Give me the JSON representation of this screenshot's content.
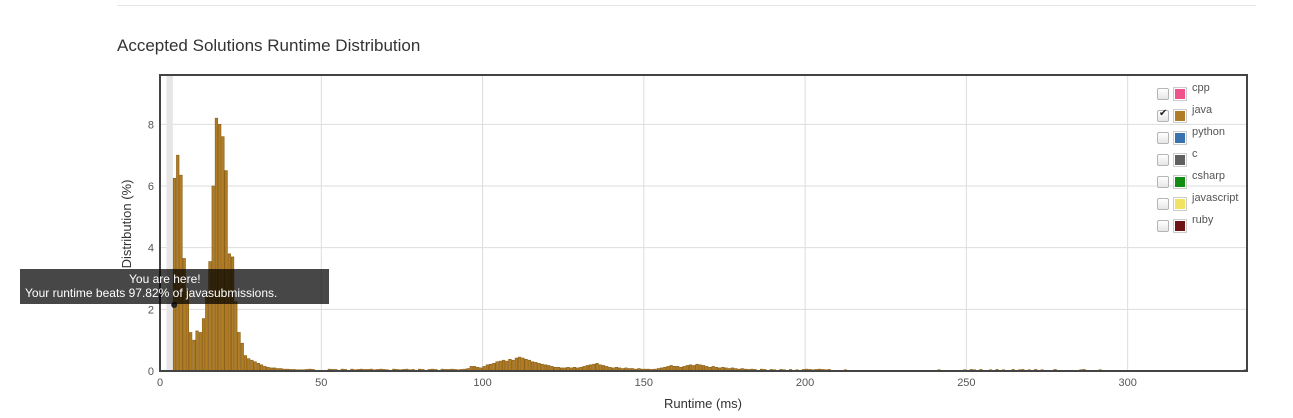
{
  "chart_title": "Accepted Solutions Runtime Distribution",
  "legend": {
    "items": [
      {
        "name": "cpp",
        "color": "#f0528b",
        "checked": false
      },
      {
        "name": "java",
        "color": "#b07d26",
        "checked": true
      },
      {
        "name": "python",
        "color": "#3a72b0",
        "checked": false
      },
      {
        "name": "c",
        "color": "#5f5f5f",
        "checked": false
      },
      {
        "name": "csharp",
        "color": "#128c12",
        "checked": false
      },
      {
        "name": "javascript",
        "color": "#f2e261",
        "checked": false
      },
      {
        "name": "ruby",
        "color": "#6e1416",
        "checked": false
      }
    ]
  },
  "tooltip": {
    "line1": "You are here!",
    "line2": "Your runtime beats 97.82% of javasubmissions."
  },
  "chart_data": {
    "type": "bar",
    "title": "Accepted Solutions Runtime Distribution",
    "xlabel": "Runtime (ms)",
    "ylabel": "Distribution (%)",
    "xlim": [
      0,
      337
    ],
    "ylim": [
      0,
      9.6
    ],
    "xticks": [
      0,
      50,
      100,
      150,
      200,
      250,
      300
    ],
    "yticks": [
      0,
      2,
      4,
      6,
      8
    ],
    "grid": true,
    "legend_position": "top-right",
    "highlight_x": 4,
    "series": [
      {
        "name": "java",
        "color": "#b07d26",
        "points": [
          [
            4,
            6.25
          ],
          [
            5,
            7.0
          ],
          [
            6,
            6.35
          ],
          [
            7,
            3.65
          ],
          [
            8,
            2.6
          ],
          [
            9,
            1.25
          ],
          [
            10,
            1.0
          ],
          [
            11,
            1.3
          ],
          [
            12,
            1.25
          ],
          [
            13,
            1.7
          ],
          [
            14,
            2.5
          ],
          [
            15,
            3.55
          ],
          [
            16,
            6.0
          ],
          [
            17,
            8.2
          ],
          [
            18,
            8.0
          ],
          [
            19,
            7.6
          ],
          [
            20,
            6.5
          ],
          [
            21,
            3.8
          ],
          [
            22,
            3.7
          ],
          [
            23,
            2.25
          ],
          [
            24,
            1.25
          ],
          [
            25,
            0.9
          ],
          [
            26,
            0.5
          ],
          [
            27,
            0.4
          ],
          [
            28,
            0.35
          ],
          [
            29,
            0.3
          ],
          [
            30,
            0.25
          ],
          [
            31,
            0.2
          ],
          [
            32,
            0.15
          ],
          [
            33,
            0.12
          ],
          [
            34,
            0.1
          ],
          [
            35,
            0.1
          ],
          [
            36,
            0.08
          ],
          [
            37,
            0.08
          ],
          [
            38,
            0.06
          ],
          [
            39,
            0.06
          ],
          [
            40,
            0.05
          ],
          [
            41,
            0.05
          ],
          [
            42,
            0.04
          ],
          [
            43,
            0.04
          ],
          [
            44,
            0.04
          ],
          [
            45,
            0.05
          ],
          [
            46,
            0.06
          ],
          [
            47,
            0.05
          ],
          [
            52,
            0.06
          ],
          [
            53,
            0.05
          ],
          [
            54,
            0.05
          ],
          [
            56,
            0.06
          ],
          [
            57,
            0.05
          ],
          [
            59,
            0.06
          ],
          [
            60,
            0.04
          ],
          [
            61,
            0.05
          ],
          [
            62,
            0.06
          ],
          [
            63,
            0.05
          ],
          [
            64,
            0.05
          ],
          [
            65,
            0.06
          ],
          [
            66,
            0.04
          ],
          [
            67,
            0.05
          ],
          [
            68,
            0.06
          ],
          [
            69,
            0.05
          ],
          [
            70,
            0.04
          ],
          [
            72,
            0.06
          ],
          [
            73,
            0.05
          ],
          [
            74,
            0.04
          ],
          [
            75,
            0.05
          ],
          [
            76,
            0.06
          ],
          [
            77,
            0.04
          ],
          [
            78,
            0.05
          ],
          [
            80,
            0.06
          ],
          [
            81,
            0.05
          ],
          [
            83,
            0.05
          ],
          [
            84,
            0.06
          ],
          [
            85,
            0.05
          ],
          [
            87,
            0.06
          ],
          [
            88,
            0.05
          ],
          [
            89,
            0.05
          ],
          [
            90,
            0.06
          ],
          [
            91,
            0.05
          ],
          [
            92,
            0.04
          ],
          [
            93,
            0.05
          ],
          [
            94,
            0.06
          ],
          [
            95,
            0.08
          ],
          [
            96,
            0.15
          ],
          [
            97,
            0.15
          ],
          [
            98,
            0.12
          ],
          [
            99,
            0.1
          ],
          [
            100,
            0.15
          ],
          [
            101,
            0.2
          ],
          [
            102,
            0.22
          ],
          [
            103,
            0.25
          ],
          [
            104,
            0.3
          ],
          [
            105,
            0.32
          ],
          [
            106,
            0.35
          ],
          [
            107,
            0.32
          ],
          [
            108,
            0.38
          ],
          [
            109,
            0.35
          ],
          [
            110,
            0.42
          ],
          [
            111,
            0.45
          ],
          [
            112,
            0.42
          ],
          [
            113,
            0.38
          ],
          [
            114,
            0.35
          ],
          [
            115,
            0.3
          ],
          [
            116,
            0.28
          ],
          [
            117,
            0.25
          ],
          [
            118,
            0.22
          ],
          [
            119,
            0.2
          ],
          [
            120,
            0.18
          ],
          [
            121,
            0.15
          ],
          [
            122,
            0.12
          ],
          [
            123,
            0.12
          ],
          [
            124,
            0.1
          ],
          [
            125,
            0.1
          ],
          [
            126,
            0.12
          ],
          [
            127,
            0.1
          ],
          [
            128,
            0.12
          ],
          [
            129,
            0.1
          ],
          [
            130,
            0.12
          ],
          [
            131,
            0.15
          ],
          [
            132,
            0.18
          ],
          [
            133,
            0.2
          ],
          [
            134,
            0.22
          ],
          [
            135,
            0.25
          ],
          [
            136,
            0.2
          ],
          [
            137,
            0.18
          ],
          [
            138,
            0.15
          ],
          [
            139,
            0.12
          ],
          [
            140,
            0.1
          ],
          [
            141,
            0.12
          ],
          [
            142,
            0.1
          ],
          [
            143,
            0.08
          ],
          [
            144,
            0.1
          ],
          [
            145,
            0.08
          ],
          [
            146,
            0.08
          ],
          [
            147,
            0.06
          ],
          [
            148,
            0.08
          ],
          [
            149,
            0.06
          ],
          [
            150,
            0.06
          ],
          [
            151,
            0.06
          ],
          [
            152,
            0.05
          ],
          [
            153,
            0.06
          ],
          [
            154,
            0.08
          ],
          [
            155,
            0.1
          ],
          [
            156,
            0.12
          ],
          [
            157,
            0.15
          ],
          [
            158,
            0.18
          ],
          [
            159,
            0.15
          ],
          [
            160,
            0.15
          ],
          [
            161,
            0.12
          ],
          [
            162,
            0.15
          ],
          [
            163,
            0.18
          ],
          [
            164,
            0.2
          ],
          [
            165,
            0.18
          ],
          [
            166,
            0.22
          ],
          [
            167,
            0.2
          ],
          [
            168,
            0.18
          ],
          [
            169,
            0.15
          ],
          [
            170,
            0.12
          ],
          [
            171,
            0.15
          ],
          [
            172,
            0.12
          ],
          [
            173,
            0.1
          ],
          [
            174,
            0.12
          ],
          [
            175,
            0.1
          ],
          [
            176,
            0.08
          ],
          [
            177,
            0.1
          ],
          [
            178,
            0.08
          ],
          [
            179,
            0.06
          ],
          [
            180,
            0.08
          ],
          [
            181,
            0.06
          ],
          [
            182,
            0.05
          ],
          [
            183,
            0.06
          ],
          [
            184,
            0.05
          ],
          [
            186,
            0.06
          ],
          [
            187,
            0.05
          ],
          [
            189,
            0.05
          ],
          [
            190,
            0.04
          ],
          [
            192,
            0.05
          ],
          [
            193,
            0.04
          ],
          [
            195,
            0.05
          ],
          [
            197,
            0.04
          ],
          [
            199,
            0.05
          ],
          [
            200,
            0.06
          ],
          [
            201,
            0.05
          ],
          [
            202,
            0.04
          ],
          [
            203,
            0.05
          ],
          [
            204,
            0.06
          ],
          [
            205,
            0.05
          ],
          [
            206,
            0.04
          ],
          [
            207,
            0.05
          ],
          [
            212,
            0.04
          ],
          [
            241,
            0.04
          ],
          [
            249,
            0.04
          ],
          [
            251,
            0.05
          ],
          [
            252,
            0.04
          ],
          [
            254,
            0.05
          ],
          [
            257,
            0.04
          ],
          [
            259,
            0.05
          ],
          [
            261,
            0.04
          ],
          [
            264,
            0.05
          ],
          [
            266,
            0.04
          ],
          [
            267,
            0.05
          ],
          [
            269,
            0.04
          ],
          [
            271,
            0.05
          ],
          [
            273,
            0.04
          ],
          [
            277,
            0.05
          ],
          [
            285,
            0.04
          ],
          [
            286,
            0.05
          ],
          [
            291,
            0.04
          ],
          [
            336,
            0.04
          ]
        ]
      }
    ]
  }
}
